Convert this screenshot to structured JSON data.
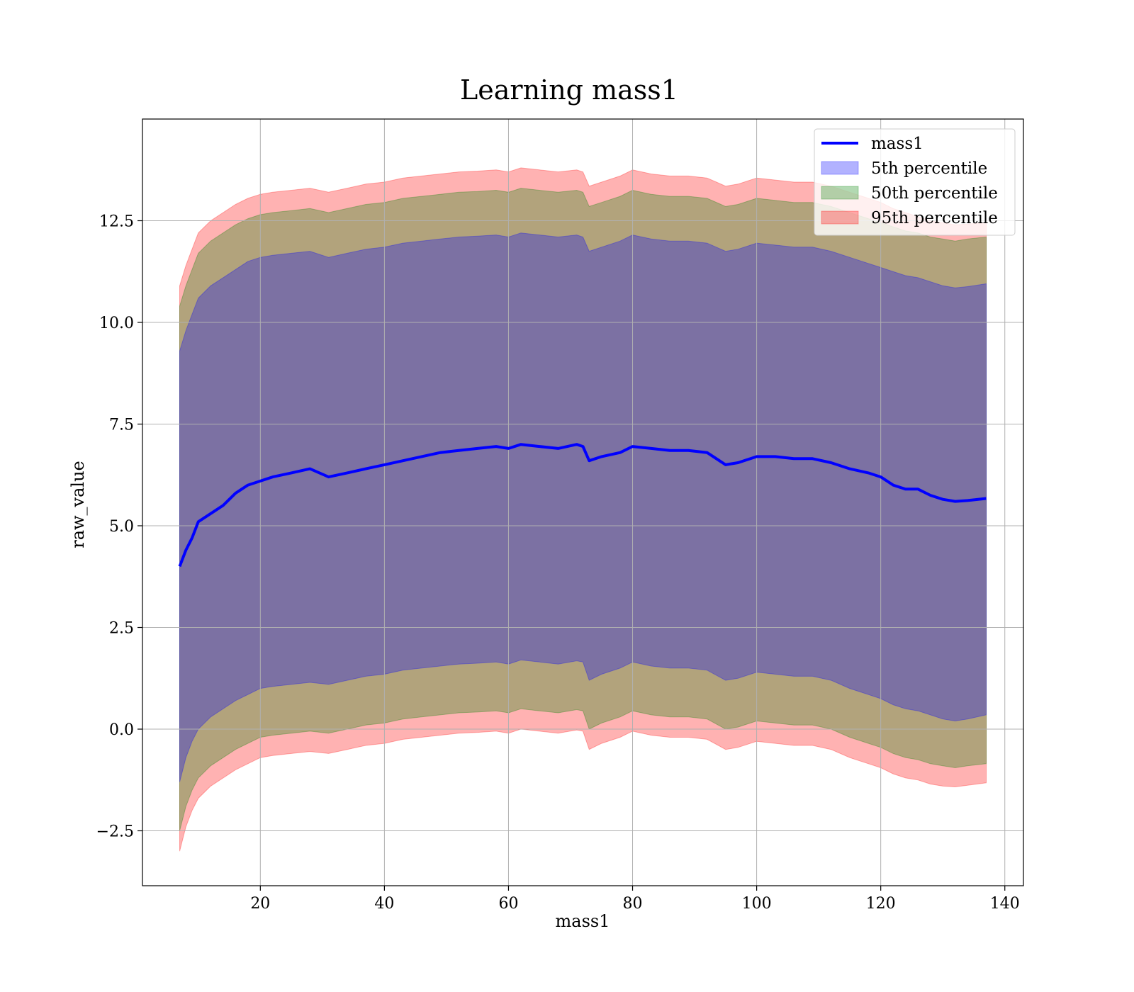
{
  "chart_data": {
    "type": "area",
    "title": "Learning mass1",
    "xlabel": "mass1",
    "ylabel": "raw_value",
    "xlim": [
      1,
      143
    ],
    "ylim": [
      -3.85,
      15.0
    ],
    "xticks": [
      20,
      40,
      60,
      80,
      100,
      120,
      140
    ],
    "yticks": [
      -2.5,
      0.0,
      2.5,
      5.0,
      7.5,
      10.0,
      12.5
    ],
    "xtick_labels": [
      "20",
      "40",
      "60",
      "80",
      "100",
      "120",
      "140"
    ],
    "ytick_labels": [
      "−2.5",
      "0.0",
      "2.5",
      "5.0",
      "7.5",
      "10.0",
      "12.5"
    ],
    "grid": true,
    "legend_position": "top-right",
    "x": [
      7,
      8,
      9,
      10,
      12,
      14,
      16,
      18,
      20,
      22,
      25,
      28,
      31,
      34,
      37,
      40,
      43,
      46,
      49,
      52,
      55,
      58,
      60,
      62,
      65,
      68,
      71,
      72,
      73,
      75,
      78,
      80,
      83,
      86,
      89,
      92,
      95,
      97,
      100,
      103,
      106,
      109,
      112,
      115,
      118,
      120,
      122,
      124,
      126,
      128,
      130,
      132,
      134,
      137
    ],
    "series": [
      {
        "name": "mass1",
        "kind": "line",
        "color": "#0000ff",
        "values": [
          4.0,
          4.4,
          4.7,
          5.1,
          5.3,
          5.5,
          5.8,
          6.0,
          6.1,
          6.2,
          6.3,
          6.4,
          6.2,
          6.3,
          6.4,
          6.5,
          6.6,
          6.7,
          6.8,
          6.85,
          6.9,
          6.95,
          6.9,
          7.0,
          6.95,
          6.9,
          7.0,
          6.95,
          6.6,
          6.7,
          6.8,
          6.95,
          6.9,
          6.85,
          6.85,
          6.8,
          6.5,
          6.55,
          6.7,
          6.7,
          6.65,
          6.65,
          6.55,
          6.4,
          6.3,
          6.2,
          6.0,
          5.9,
          5.9,
          5.75,
          5.65,
          5.6,
          5.62,
          5.67
        ]
      },
      {
        "name": "5th percentile",
        "kind": "band",
        "color": "#0000ff",
        "lower": [
          -1.3,
          -0.7,
          -0.3,
          0.0,
          0.3,
          0.5,
          0.7,
          0.85,
          1.0,
          1.05,
          1.1,
          1.15,
          1.1,
          1.2,
          1.3,
          1.35,
          1.45,
          1.5,
          1.55,
          1.6,
          1.62,
          1.65,
          1.6,
          1.7,
          1.65,
          1.6,
          1.68,
          1.65,
          1.2,
          1.35,
          1.5,
          1.65,
          1.55,
          1.5,
          1.5,
          1.45,
          1.2,
          1.25,
          1.4,
          1.35,
          1.3,
          1.3,
          1.2,
          1.0,
          0.85,
          0.75,
          0.6,
          0.5,
          0.45,
          0.35,
          0.25,
          0.2,
          0.25,
          0.35
        ],
        "upper": [
          9.3,
          9.8,
          10.2,
          10.6,
          10.9,
          11.1,
          11.3,
          11.5,
          11.6,
          11.65,
          11.7,
          11.75,
          11.6,
          11.7,
          11.8,
          11.85,
          11.95,
          12.0,
          12.05,
          12.1,
          12.12,
          12.15,
          12.1,
          12.2,
          12.15,
          12.1,
          12.15,
          12.1,
          11.75,
          11.85,
          12.0,
          12.15,
          12.05,
          12.0,
          12.0,
          11.95,
          11.75,
          11.8,
          11.95,
          11.9,
          11.85,
          11.85,
          11.75,
          11.6,
          11.45,
          11.35,
          11.25,
          11.15,
          11.1,
          11.0,
          10.9,
          10.85,
          10.88,
          10.95
        ]
      },
      {
        "name": "50th percentile",
        "kind": "band",
        "color": "#008000",
        "lower": [
          -2.5,
          -1.9,
          -1.5,
          -1.2,
          -0.9,
          -0.7,
          -0.5,
          -0.35,
          -0.2,
          -0.15,
          -0.1,
          -0.05,
          -0.1,
          0.0,
          0.1,
          0.15,
          0.25,
          0.3,
          0.35,
          0.4,
          0.42,
          0.45,
          0.4,
          0.5,
          0.45,
          0.4,
          0.48,
          0.45,
          0.0,
          0.15,
          0.3,
          0.45,
          0.35,
          0.3,
          0.3,
          0.25,
          0.0,
          0.05,
          0.2,
          0.15,
          0.1,
          0.1,
          0.0,
          -0.2,
          -0.35,
          -0.45,
          -0.6,
          -0.7,
          -0.75,
          -0.85,
          -0.9,
          -0.95,
          -0.9,
          -0.85
        ],
        "upper": [
          10.4,
          10.9,
          11.3,
          11.7,
          12.0,
          12.2,
          12.4,
          12.55,
          12.65,
          12.7,
          12.75,
          12.8,
          12.7,
          12.8,
          12.9,
          12.95,
          13.05,
          13.1,
          13.15,
          13.2,
          13.22,
          13.25,
          13.2,
          13.3,
          13.25,
          13.2,
          13.25,
          13.2,
          12.85,
          12.95,
          13.1,
          13.25,
          13.15,
          13.1,
          13.1,
          13.05,
          12.85,
          12.9,
          13.05,
          13.0,
          12.95,
          12.95,
          12.85,
          12.7,
          12.55,
          12.45,
          12.35,
          12.25,
          12.2,
          12.1,
          12.05,
          12.0,
          12.05,
          12.1
        ]
      },
      {
        "name": "95th percentile",
        "kind": "band",
        "color": "#ff0000",
        "lower": [
          -3.0,
          -2.4,
          -2.0,
          -1.7,
          -1.4,
          -1.2,
          -1.0,
          -0.85,
          -0.7,
          -0.65,
          -0.6,
          -0.55,
          -0.6,
          -0.5,
          -0.4,
          -0.35,
          -0.25,
          -0.2,
          -0.15,
          -0.1,
          -0.08,
          -0.05,
          -0.1,
          0.0,
          -0.05,
          -0.1,
          -0.02,
          -0.05,
          -0.5,
          -0.35,
          -0.2,
          -0.05,
          -0.15,
          -0.2,
          -0.2,
          -0.25,
          -0.5,
          -0.45,
          -0.3,
          -0.35,
          -0.4,
          -0.4,
          -0.5,
          -0.7,
          -0.85,
          -0.95,
          -1.1,
          -1.2,
          -1.25,
          -1.35,
          -1.4,
          -1.42,
          -1.38,
          -1.32
        ],
        "upper": [
          10.9,
          11.4,
          11.8,
          12.2,
          12.5,
          12.7,
          12.9,
          13.05,
          13.15,
          13.2,
          13.25,
          13.3,
          13.2,
          13.3,
          13.4,
          13.45,
          13.55,
          13.6,
          13.65,
          13.7,
          13.72,
          13.75,
          13.7,
          13.8,
          13.75,
          13.7,
          13.75,
          13.7,
          13.35,
          13.45,
          13.6,
          13.75,
          13.65,
          13.6,
          13.6,
          13.55,
          13.35,
          13.4,
          13.55,
          13.5,
          13.45,
          13.45,
          13.35,
          13.2,
          13.05,
          12.95,
          12.8,
          12.7,
          12.6,
          12.5,
          12.45,
          12.4,
          12.42,
          12.45
        ]
      }
    ]
  }
}
